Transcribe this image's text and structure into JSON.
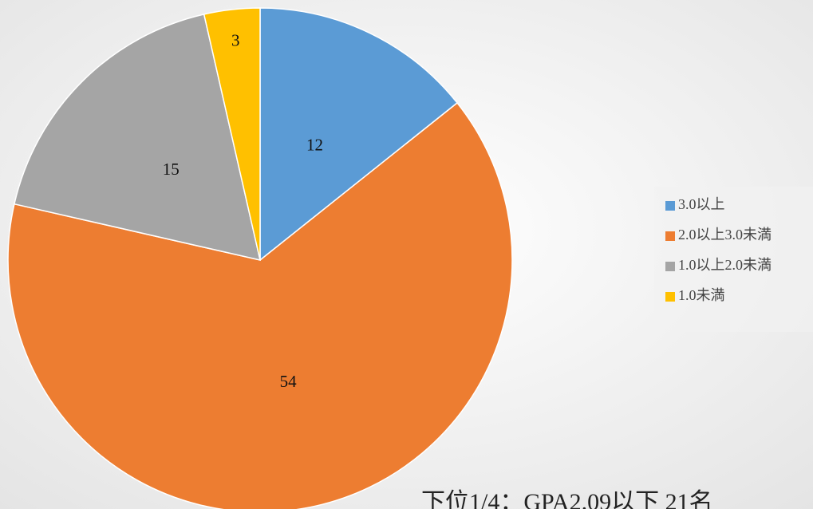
{
  "chart_data": {
    "type": "pie",
    "categories": [
      "3.0以上",
      "2.0以上3.0未満",
      "1.0以上2.0未満",
      "1.0未満"
    ],
    "values": [
      12,
      54,
      15,
      3
    ],
    "colors": [
      "#5b9bd5",
      "#ed7d31",
      "#a5a5a5",
      "#ffc000"
    ],
    "legend": "right",
    "annotation": "下位1/4：GPA2.09以下 21名"
  }
}
